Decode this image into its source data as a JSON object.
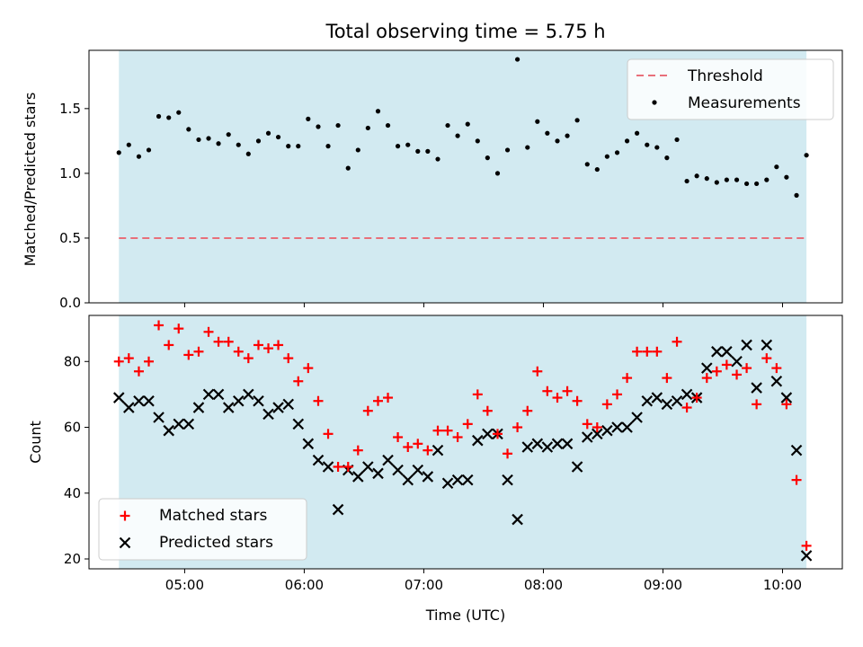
{
  "chart_data": [
    {
      "type": "scatter",
      "title": "Total observing time = 5.75 h",
      "ylabel": "Matched/Predicted stars",
      "ylim": [
        0.0,
        1.95
      ],
      "yticks": [
        0.0,
        0.5,
        1.0,
        1.5
      ],
      "ytick_labels": [
        "0.0",
        "0.5",
        "1.0",
        "1.5"
      ],
      "shaded_span_x": [
        4.45,
        10.2
      ],
      "shade_color": "#add8e6",
      "threshold": {
        "name": "Threshold",
        "y": 0.5,
        "x": [
          4.45,
          10.2
        ],
        "color": "#e8707a",
        "style": "dashed"
      },
      "measurements": {
        "name": "Measurements",
        "color": "#000000",
        "x": [
          4.45,
          4.533,
          4.617,
          4.7,
          4.783,
          4.867,
          4.95,
          5.033,
          5.117,
          5.2,
          5.283,
          5.367,
          5.45,
          5.533,
          5.617,
          5.7,
          5.783,
          5.867,
          5.95,
          6.033,
          6.117,
          6.2,
          6.283,
          6.367,
          6.45,
          6.533,
          6.617,
          6.7,
          6.783,
          6.867,
          6.95,
          7.033,
          7.117,
          7.2,
          7.283,
          7.367,
          7.45,
          7.533,
          7.617,
          7.7,
          7.783,
          7.867,
          7.95,
          8.033,
          8.117,
          8.2,
          8.283,
          8.367,
          8.45,
          8.533,
          8.617,
          8.7,
          8.783,
          8.867,
          8.95,
          9.033,
          9.117,
          9.2,
          9.283,
          9.367,
          9.45,
          9.533,
          9.617,
          9.7,
          9.783,
          9.867,
          9.95,
          10.033,
          10.117,
          10.2
        ],
        "y": [
          1.16,
          1.22,
          1.13,
          1.18,
          1.44,
          1.43,
          1.47,
          1.34,
          1.26,
          1.27,
          1.23,
          1.3,
          1.22,
          1.15,
          1.25,
          1.31,
          1.28,
          1.21,
          1.21,
          1.42,
          1.36,
          1.21,
          1.37,
          1.04,
          1.18,
          1.35,
          1.48,
          1.37,
          1.21,
          1.22,
          1.17,
          1.17,
          1.11,
          1.37,
          1.29,
          1.38,
          1.25,
          1.12,
          1.0,
          1.18,
          1.88,
          1.2,
          1.4,
          1.31,
          1.25,
          1.29,
          1.41,
          1.07,
          1.03,
          1.13,
          1.16,
          1.25,
          1.31,
          1.22,
          1.2,
          1.12,
          1.26,
          0.94,
          0.98,
          0.96,
          0.93,
          0.95,
          0.95,
          0.92,
          0.92,
          0.95,
          1.05,
          0.97,
          0.83,
          1.14
        ]
      }
    },
    {
      "type": "scatter",
      "xlabel": "Time (UTC)",
      "ylabel": "Count",
      "ylim": [
        17,
        94
      ],
      "yticks": [
        20,
        40,
        60,
        80
      ],
      "ytick_labels": [
        "20",
        "40",
        "60",
        "80"
      ],
      "xticks": [
        5,
        6,
        7,
        8,
        9,
        10
      ],
      "xtick_labels": [
        "05:00",
        "06:00",
        "07:00",
        "08:00",
        "09:00",
        "10:00"
      ],
      "shaded_span_x": [
        4.45,
        10.2
      ],
      "series": [
        {
          "name": "Matched stars",
          "marker": "+",
          "color": "#ff0000",
          "x": [
            4.45,
            4.533,
            4.617,
            4.7,
            4.783,
            4.867,
            4.95,
            5.033,
            5.117,
            5.2,
            5.283,
            5.367,
            5.45,
            5.533,
            5.617,
            5.7,
            5.783,
            5.867,
            5.95,
            6.033,
            6.117,
            6.2,
            6.283,
            6.367,
            6.45,
            6.533,
            6.617,
            6.7,
            6.783,
            6.867,
            6.95,
            7.033,
            7.117,
            7.2,
            7.283,
            7.367,
            7.45,
            7.533,
            7.617,
            7.7,
            7.783,
            7.867,
            7.95,
            8.033,
            8.117,
            8.2,
            8.283,
            8.367,
            8.45,
            8.533,
            8.617,
            8.7,
            8.783,
            8.867,
            8.95,
            9.033,
            9.117,
            9.2,
            9.283,
            9.367,
            9.45,
            9.533,
            9.617,
            9.7,
            9.783,
            9.867,
            9.95,
            10.033,
            10.117,
            10.2
          ],
          "y": [
            80,
            81,
            77,
            80,
            91,
            85,
            90,
            82,
            83,
            89,
            86,
            86,
            83,
            81,
            85,
            84,
            85,
            81,
            74,
            78,
            68,
            58,
            48,
            48,
            53,
            65,
            68,
            69,
            57,
            54,
            55,
            53,
            59,
            59,
            57,
            61,
            70,
            65,
            58,
            52,
            60,
            65,
            77,
            71,
            69,
            71,
            68,
            61,
            60,
            67,
            70,
            75,
            83,
            83,
            83,
            75,
            86,
            66,
            69,
            75,
            77,
            79,
            76,
            78,
            67,
            81,
            78,
            67,
            44,
            24
          ]
        },
        {
          "name": "Predicted stars",
          "marker": "x",
          "color": "#000000",
          "x": [
            4.45,
            4.533,
            4.617,
            4.7,
            4.783,
            4.867,
            4.95,
            5.033,
            5.117,
            5.2,
            5.283,
            5.367,
            5.45,
            5.533,
            5.617,
            5.7,
            5.783,
            5.867,
            5.95,
            6.033,
            6.117,
            6.2,
            6.283,
            6.367,
            6.45,
            6.533,
            6.617,
            6.7,
            6.783,
            6.867,
            6.95,
            7.033,
            7.117,
            7.2,
            7.283,
            7.367,
            7.45,
            7.533,
            7.617,
            7.7,
            7.783,
            7.867,
            7.95,
            8.033,
            8.117,
            8.2,
            8.283,
            8.367,
            8.45,
            8.533,
            8.617,
            8.7,
            8.783,
            8.867,
            8.95,
            9.033,
            9.117,
            9.2,
            9.283,
            9.367,
            9.45,
            9.533,
            9.617,
            9.7,
            9.783,
            9.867,
            9.95,
            10.033,
            10.117,
            10.2
          ],
          "y": [
            69,
            66,
            68,
            68,
            63,
            59,
            61,
            61,
            66,
            70,
            70,
            66,
            68,
            70,
            68,
            64,
            66,
            67,
            61,
            55,
            50,
            48,
            35,
            47,
            45,
            48,
            46,
            50,
            47,
            44,
            47,
            45,
            53,
            43,
            44,
            44,
            56,
            58,
            58,
            44,
            32,
            54,
            55,
            54,
            55,
            55,
            48,
            57,
            58,
            59,
            60,
            60,
            63,
            68,
            69,
            67,
            68,
            70,
            69,
            78,
            83,
            83,
            80,
            85,
            72,
            85,
            74,
            69,
            53,
            21
          ]
        }
      ]
    }
  ]
}
